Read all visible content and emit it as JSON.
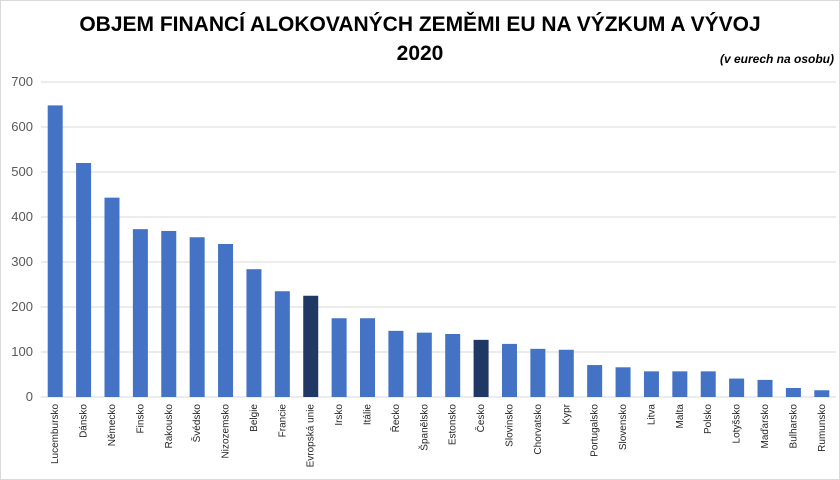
{
  "chart_data": {
    "type": "bar",
    "title": "OBJEM FINANCÍ ALOKOVANÝCH ZEMĚMI EU NA VÝZKUM A VÝVOJ",
    "subtitle": "2020",
    "unit_note": "(v eurech na osobu)",
    "ylim": [
      0,
      700
    ],
    "yticks": [
      0,
      100,
      200,
      300,
      400,
      500,
      600,
      700
    ],
    "grid": true,
    "colors": {
      "default": "#4472c4",
      "highlight": "#1f3864",
      "grid": "#d9d9d9"
    },
    "highlighted": [
      "Evropská unie",
      "Česko"
    ],
    "categories": [
      "Lucembursko",
      "Dánsko",
      "Německo",
      "Finsko",
      "Rakousko",
      "Švédsko",
      "Nizozemsko",
      "Belgie",
      "Francie",
      "Evropská unie",
      "Irsko",
      "Itálie",
      "Řecko",
      "Španělsko",
      "Estonsko",
      "Česko",
      "Slovinsko",
      "Chorvatsko",
      "Kypr",
      "Portugalsko",
      "Slovensko",
      "Litva",
      "Malta",
      "Polsko",
      "Lotyšsko",
      "Maďarsko",
      "Bulharsko",
      "Rumunsko"
    ],
    "values": [
      648,
      520,
      443,
      373,
      369,
      355,
      340,
      284,
      235,
      225,
      175,
      175,
      147,
      143,
      140,
      127,
      118,
      107,
      105,
      71,
      66,
      57,
      57,
      57,
      41,
      38,
      20,
      15
    ]
  }
}
